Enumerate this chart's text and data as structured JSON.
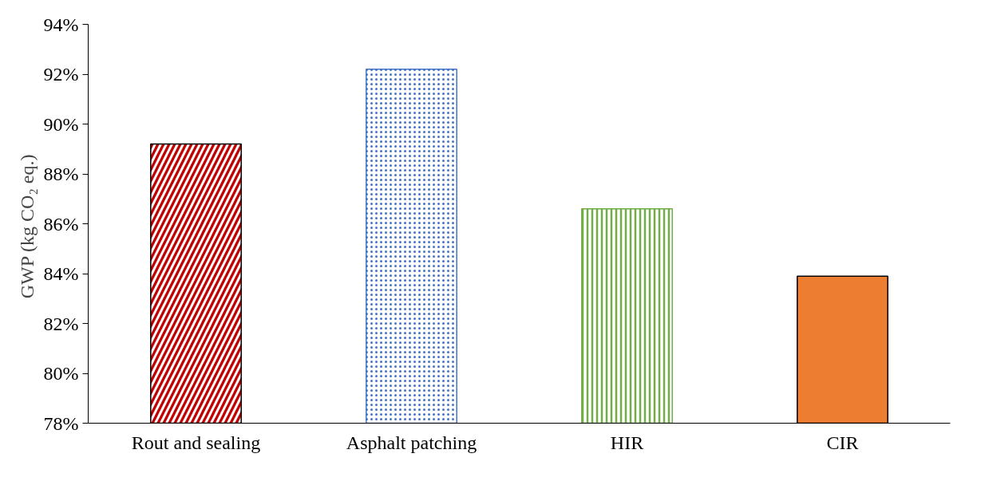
{
  "chart_data": {
    "type": "bar",
    "ylabel": "GWP  (kg CO₂ eq.)",
    "categories": [
      "Rout and sealing",
      "Asphalt patching",
      "HIR",
      "CIR"
    ],
    "values": [
      89.2,
      92.2,
      86.6,
      83.9
    ],
    "colors": [
      "#c00000",
      "#4472c4",
      "#70ad47",
      "#ed7d31"
    ],
    "ylim": [
      78,
      94
    ],
    "yticks": [
      {
        "value": 78,
        "label": "78%"
      },
      {
        "value": 80,
        "label": "80%"
      },
      {
        "value": 82,
        "label": "82%"
      },
      {
        "value": 84,
        "label": "84%"
      },
      {
        "value": 86,
        "label": "86%"
      },
      {
        "value": 88,
        "label": "88%"
      },
      {
        "value": 90,
        "label": "90%"
      },
      {
        "value": 92,
        "label": "92%"
      },
      {
        "value": 94,
        "label": "94%"
      }
    ],
    "grid": false
  }
}
